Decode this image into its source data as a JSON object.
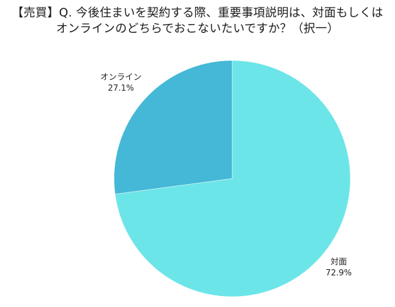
{
  "chart_data": {
    "type": "pie",
    "title_lines": [
      "【売買】Q. 今後住まいを契約する際、重要事項説明は、対面もしくは",
      "オンラインのどちらでおこないたいですか？（択一）"
    ],
    "start_angle_deg": 0,
    "direction": "clockwise",
    "slices": [
      {
        "name": "対面",
        "value": 72.9,
        "value_label": "72.9%",
        "color": "#6ce5e8"
      },
      {
        "name": "オンライン",
        "value": 27.1,
        "value_label": "27.1%",
        "color": "#44b8d6"
      }
    ],
    "legend": "none"
  }
}
